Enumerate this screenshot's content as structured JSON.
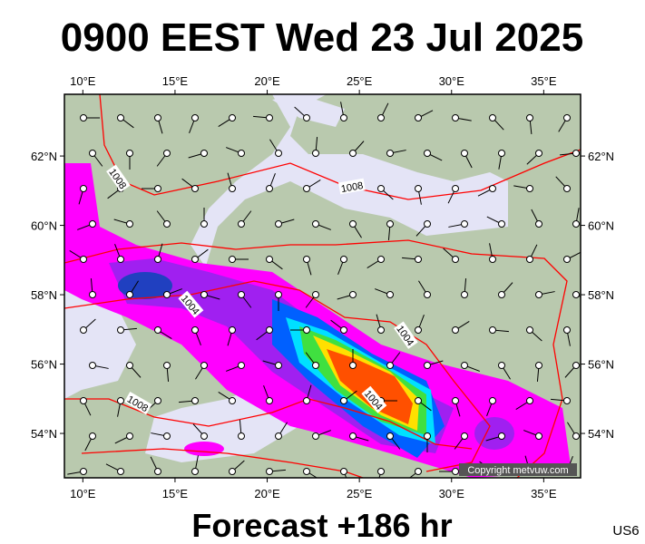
{
  "header": {
    "title": "0900 EEST Wed 23 Jul 2025"
  },
  "map": {
    "xlim": [
      9,
      37
    ],
    "ylim": [
      52.72,
      63.78
    ],
    "xticks": [
      {
        "value": 10,
        "label": "10°E"
      },
      {
        "value": 15,
        "label": "15°E"
      },
      {
        "value": 20,
        "label": "20°E"
      },
      {
        "value": 25,
        "label": "25°E"
      },
      {
        "value": 30,
        "label": "30°E"
      },
      {
        "value": 35,
        "label": "35°E"
      }
    ],
    "yticks": [
      {
        "value": 54,
        "label": "54°N"
      },
      {
        "value": 56,
        "label": "56°N"
      },
      {
        "value": 58,
        "label": "58°N"
      },
      {
        "value": 60,
        "label": "60°N"
      },
      {
        "value": 62,
        "label": "62°N"
      }
    ],
    "isobar_labels": [
      "1008",
      "1008",
      "1004",
      "1004",
      "1008",
      "1004"
    ],
    "copyright": "Copyright metvuw.com"
  },
  "footer": {
    "forecast": "Forecast +186 hr",
    "code": "US6"
  }
}
